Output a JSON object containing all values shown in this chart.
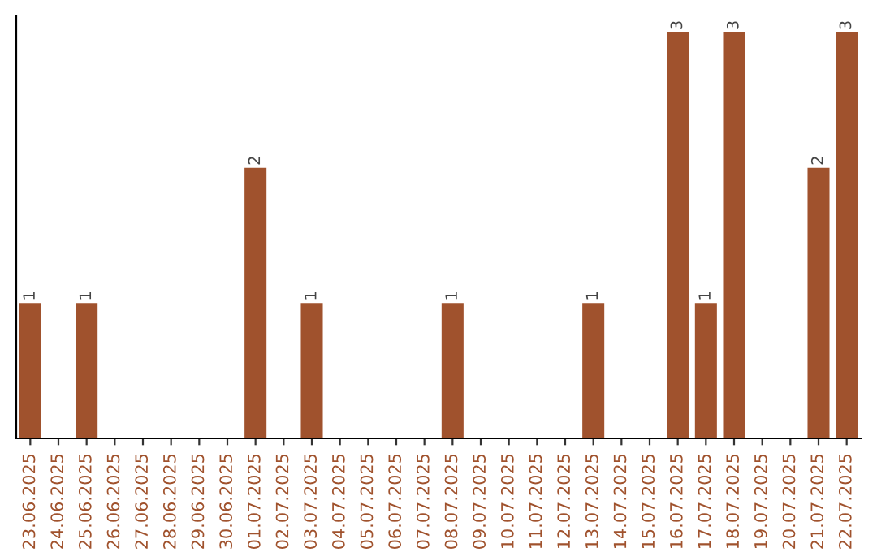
{
  "chart_data": {
    "type": "bar",
    "categories": [
      "23.06.2025",
      "24.06.2025",
      "25.06.2025",
      "26.06.2025",
      "27.06.2025",
      "28.06.2025",
      "29.06.2025",
      "30.06.2025",
      "01.07.2025",
      "02.07.2025",
      "03.07.2025",
      "04.07.2025",
      "05.07.2025",
      "06.07.2025",
      "07.07.2025",
      "08.07.2025",
      "09.07.2025",
      "10.07.2025",
      "11.07.2025",
      "12.07.2025",
      "13.07.2025",
      "14.07.2025",
      "15.07.2025",
      "16.07.2025",
      "17.07.2025",
      "18.07.2025",
      "19.07.2025",
      "20.07.2025",
      "21.07.2025",
      "22.07.2025"
    ],
    "values": [
      1,
      0,
      1,
      0,
      0,
      0,
      0,
      0,
      2,
      0,
      1,
      0,
      0,
      0,
      0,
      1,
      0,
      0,
      0,
      0,
      1,
      0,
      0,
      3,
      1,
      3,
      0,
      0,
      2,
      3
    ],
    "value_labels": [
      "1",
      null,
      "1",
      null,
      null,
      null,
      null,
      null,
      "2",
      null,
      "1",
      null,
      null,
      null,
      null,
      "1",
      null,
      null,
      null,
      null,
      "1",
      null,
      null,
      "3",
      "1",
      "3",
      null,
      null,
      "2",
      "3"
    ],
    "color": "#a0522d",
    "grid": false,
    "legend": false
  }
}
